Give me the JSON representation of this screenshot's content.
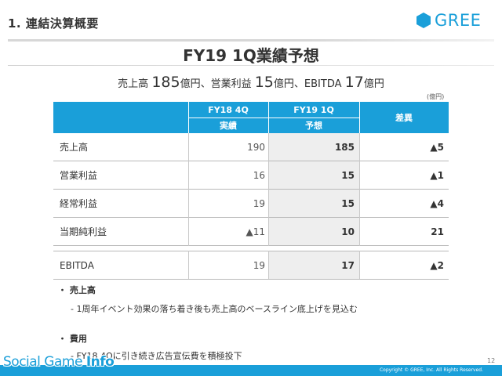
{
  "header": {
    "section_title": "1. 連結決算概要",
    "logo_text": "GREE",
    "main_title": "FY19 1Q業績予想"
  },
  "summary": {
    "part1": "売上高 ",
    "v1": "185",
    "part2": "億円、営業利益 ",
    "v2": "15",
    "part3": "億円、EBITDA ",
    "v3": "17",
    "part4": "億円"
  },
  "unit_label": "(億円)",
  "table": {
    "col1_top": "FY18 4Q",
    "col1_bottom": "実績",
    "col2_top": "FY19 1Q",
    "col2_bottom": "予想",
    "col3": "差異",
    "rows": [
      {
        "label": "売上高",
        "v1": "190",
        "v2": "185",
        "diff": "▲5"
      },
      {
        "label": "営業利益",
        "v1": "16",
        "v2": "15",
        "diff": "▲1"
      },
      {
        "label": "経常利益",
        "v1": "19",
        "v2": "15",
        "diff": "▲4"
      },
      {
        "label": "当期純利益",
        "v1": "▲11",
        "v2": "10",
        "diff": "21"
      }
    ],
    "ebitda": {
      "label": "EBITDA",
      "v1": "19",
      "v2": "17",
      "diff": "▲2"
    }
  },
  "bullets": [
    {
      "head": "・ 売上高",
      "sub": "- 1周年イベント効果の落ち着き後も売上高のベースライン底上げを見込む"
    },
    {
      "head": "・ 費用",
      "sub": "- FY18 4Qに引き続き広告宣伝費を積極投下"
    }
  ],
  "footer": {
    "page_number": "12",
    "copyright": "Copyright © GREE, Inc. All Rights Reserved.",
    "watermark_a": "Social Game ",
    "watermark_b": "Info"
  },
  "colors": {
    "accent": "#1a9fd9",
    "forecast_bg": "#eeeeee"
  }
}
